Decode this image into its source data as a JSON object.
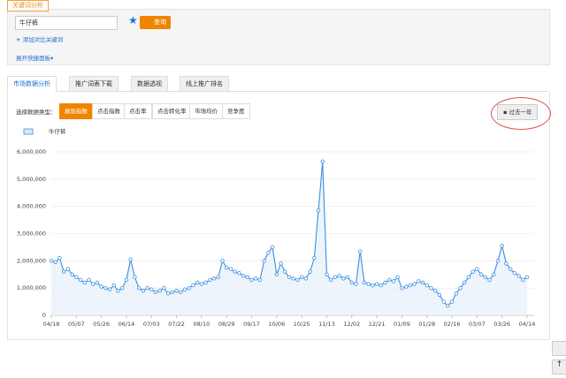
{
  "header": {
    "tab": "关键词分析",
    "keyword": "牛仔裤",
    "search_button": "查询",
    "add_compare": "添加对比关键词",
    "expand_panel": "展开快捷面板"
  },
  "tabs": [
    "市场数据分析",
    "推广词表下载",
    "数据透视",
    "线上推广排名"
  ],
  "data_type_label": "选择数据类型：",
  "data_types": [
    "展现指数",
    "点击指数",
    "点击率",
    "点击转化率",
    "市场均价",
    "竞争度"
  ],
  "period_button": "过去一年",
  "chart_data": {
    "type": "line",
    "categories": [
      "04/18",
      null,
      null,
      null,
      null,
      null,
      "05/07",
      null,
      null,
      null,
      null,
      null,
      "05/26",
      null,
      null,
      null,
      null,
      null,
      "06/14",
      null,
      null,
      null,
      null,
      null,
      "07/03",
      null,
      null,
      null,
      null,
      null,
      "07/22",
      null,
      null,
      null,
      null,
      null,
      "08/10",
      null,
      null,
      null,
      null,
      null,
      "08/29",
      null,
      null,
      null,
      null,
      null,
      "09/17",
      null,
      null,
      null,
      null,
      null,
      "10/06",
      null,
      null,
      null,
      null,
      null,
      "10/25",
      null,
      null,
      null,
      null,
      null,
      "11/13",
      null,
      null,
      null,
      null,
      null,
      "12/02",
      null,
      null,
      null,
      null,
      null,
      "12/21",
      null,
      null,
      null,
      null,
      null,
      "01/09",
      null,
      null,
      null,
      null,
      null,
      "01/28",
      null,
      null,
      null,
      null,
      null,
      "02/16",
      null,
      null,
      null,
      null,
      null,
      "03/07",
      null,
      null,
      null,
      null,
      null,
      "03/26",
      null,
      null,
      null,
      null,
      null,
      "04/14"
    ],
    "series": [
      {
        "name": "牛仔裤",
        "color": "#3d8ee0",
        "values": [
          2000000,
          1950000,
          2100000,
          1600000,
          1700000,
          1500000,
          1400000,
          1300000,
          1200000,
          1300000,
          1150000,
          1200000,
          1050000,
          1000000,
          950000,
          1100000,
          900000,
          1000000,
          1300000,
          2050000,
          1400000,
          1000000,
          900000,
          1000000,
          950000,
          850000,
          900000,
          1000000,
          800000,
          850000,
          900000,
          850000,
          950000,
          1000000,
          1100000,
          1200000,
          1150000,
          1200000,
          1300000,
          1350000,
          1400000,
          2000000,
          1750000,
          1700000,
          1600000,
          1550000,
          1450000,
          1400000,
          1300000,
          1350000,
          1300000,
          2000000,
          2300000,
          2500000,
          1500000,
          1900000,
          1600000,
          1400000,
          1350000,
          1300000,
          1400000,
          1350000,
          1600000,
          2100000,
          3850000,
          5650000,
          1500000,
          1300000,
          1400000,
          1450000,
          1350000,
          1400000,
          1200000,
          1150000,
          2350000,
          1200000,
          1150000,
          1100000,
          1150000,
          1100000,
          1200000,
          1300000,
          1250000,
          1400000,
          1000000,
          1050000,
          1100000,
          1150000,
          1250000,
          1200000,
          1100000,
          1000000,
          900000,
          750000,
          500000,
          350000,
          500000,
          800000,
          1000000,
          1200000,
          1400000,
          1600000,
          1700000,
          1500000,
          1400000,
          1300000,
          1500000,
          2000000,
          2550000,
          1900000,
          1700000,
          1550000,
          1450000,
          1300000,
          1400000
        ]
      }
    ],
    "ylim": [
      0,
      6000000
    ],
    "yticks": [
      0,
      {
        "value": 1000000,
        "label": "1,000,000"
      },
      {
        "value": 2000000,
        "label": "2,000,000"
      },
      {
        "value": 3000000,
        "label": "3,000,000"
      },
      {
        "value": 4000000,
        "label": "4,000,000"
      },
      {
        "value": 5000000,
        "label": "5,000,000"
      },
      {
        "value": 6000000,
        "label": "6,000,000"
      }
    ],
    "grid": true
  }
}
